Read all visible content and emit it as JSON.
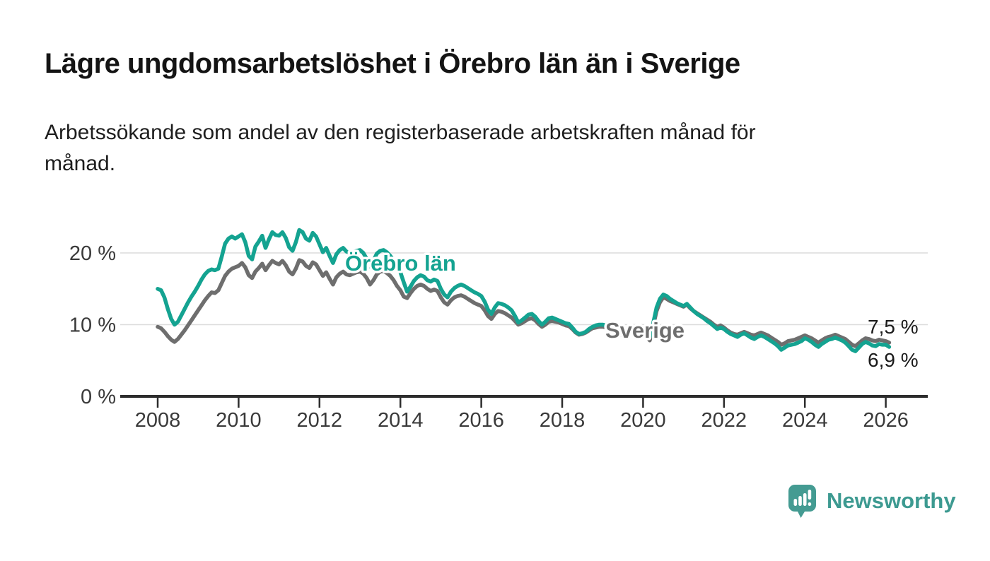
{
  "header": {
    "title": "Lägre ungdomsarbetslöshet i Örebro län än i Sverige",
    "subtitle_line1": "Arbetssökande som andel av den registerbaserade arbetskraften månad för",
    "subtitle_line2": "månad."
  },
  "chart_data": {
    "type": "line",
    "title": "Lägre ungdomsarbetslöshet i Örebro län än i Sverige",
    "subtitle": "Arbetssökande som andel av den registerbaserade arbetskraften månad för månad.",
    "frequency": "monthly",
    "start_year": 2008,
    "start_month": 1,
    "x_ticks": [
      2008,
      2010,
      2012,
      2014,
      2016,
      2018,
      2020,
      2022,
      2024,
      2026
    ],
    "y_ticks": [
      0,
      10,
      20
    ],
    "y_tick_labels": [
      "0 %",
      "10 %",
      "20 %"
    ],
    "ylim": [
      0,
      24.5
    ],
    "grid": "horizontal",
    "colors": {
      "orebro": "#14a391",
      "sverige": "#6e6e6e",
      "gridline": "#dcdcdc",
      "axis": "#2d2d2d"
    },
    "series": [
      {
        "name": "Örebro län",
        "color": "#14a391",
        "end_label": "6,9 %",
        "end_value": 6.9,
        "values": [
          15.0,
          14.8,
          13.8,
          12.2,
          10.8,
          10.0,
          10.4,
          11.3,
          12.2,
          13.1,
          13.9,
          14.6,
          15.4,
          16.3,
          17.0,
          17.5,
          17.7,
          17.6,
          17.8,
          19.5,
          21.3,
          22.0,
          22.3,
          22.0,
          22.3,
          22.6,
          21.5,
          19.6,
          19.1,
          20.9,
          21.6,
          22.4,
          20.7,
          21.9,
          22.9,
          22.5,
          22.4,
          22.9,
          22.1,
          20.8,
          20.3,
          21.5,
          23.2,
          22.9,
          22.0,
          21.7,
          22.8,
          22.3,
          21.2,
          20.1,
          20.7,
          19.6,
          18.6,
          19.8,
          20.4,
          20.7,
          20.2,
          20.0,
          20.1,
          20.3,
          20.4,
          20.0,
          19.2,
          18.1,
          18.9,
          19.9,
          20.3,
          20.4,
          20.1,
          19.6,
          18.9,
          18.0,
          17.3,
          15.9,
          14.6,
          15.3,
          16.1,
          16.6,
          16.9,
          16.7,
          16.2,
          16.0,
          16.3,
          16.1,
          15.0,
          14.2,
          13.8,
          14.6,
          15.1,
          15.4,
          15.6,
          15.4,
          15.1,
          14.8,
          14.5,
          14.3,
          14.0,
          13.2,
          12.1,
          11.5,
          12.4,
          13.0,
          12.9,
          12.7,
          12.4,
          12.0,
          11.2,
          10.3,
          10.6,
          11.0,
          11.4,
          11.5,
          11.1,
          10.5,
          10.0,
          10.4,
          10.9,
          11.0,
          10.8,
          10.6,
          10.4,
          10.2,
          10.1,
          9.6,
          9.0,
          8.7,
          8.8,
          9.0,
          9.4,
          9.7,
          9.9,
          10.0,
          10.0,
          9.9,
          9.7,
          9.3,
          9.0,
          9.1,
          9.3,
          9.4,
          9.5,
          9.6,
          9.5,
          9.3,
          9.0,
          8.6,
          8.3,
          10.2,
          12.4,
          13.6,
          14.2,
          14.0,
          13.6,
          13.3,
          13.0,
          12.8,
          12.6,
          12.9,
          12.4,
          11.9,
          11.5,
          11.2,
          10.9,
          10.5,
          10.2,
          9.8,
          9.4,
          9.6,
          9.4,
          9.0,
          8.7,
          8.5,
          8.3,
          8.6,
          8.8,
          8.5,
          8.2,
          8.0,
          8.3,
          8.5,
          8.3,
          8.0,
          7.7,
          7.4,
          7.0,
          6.5,
          6.8,
          7.1,
          7.2,
          7.3,
          7.5,
          7.7,
          8.1,
          7.9,
          7.6,
          7.2,
          6.9,
          7.3,
          7.6,
          7.9,
          8.0,
          8.2,
          8.0,
          7.8,
          7.5,
          7.0,
          6.5,
          6.3,
          6.8,
          7.3,
          7.6,
          7.4,
          7.1,
          7.0,
          7.3,
          7.2,
          7.2,
          6.9
        ]
      },
      {
        "name": "Sverige",
        "color": "#6e6e6e",
        "end_label": "7,5 %",
        "end_value": 7.5,
        "values": [
          9.7,
          9.5,
          9.0,
          8.4,
          7.9,
          7.6,
          8.0,
          8.6,
          9.2,
          9.9,
          10.6,
          11.3,
          12.0,
          12.7,
          13.4,
          14.0,
          14.5,
          14.4,
          14.8,
          15.8,
          16.8,
          17.4,
          17.8,
          18.0,
          18.2,
          18.6,
          18.0,
          16.9,
          16.5,
          17.4,
          17.9,
          18.5,
          17.6,
          18.3,
          18.9,
          18.6,
          18.4,
          18.9,
          18.3,
          17.4,
          17.0,
          17.8,
          19.0,
          18.8,
          18.2,
          17.9,
          18.7,
          18.4,
          17.6,
          16.8,
          17.3,
          16.4,
          15.6,
          16.6,
          17.1,
          17.4,
          17.0,
          16.9,
          17.1,
          17.3,
          17.4,
          17.1,
          16.5,
          15.6,
          16.2,
          17.0,
          17.4,
          17.5,
          17.2,
          16.8,
          16.2,
          15.4,
          14.8,
          13.9,
          13.7,
          14.4,
          15.0,
          15.4,
          15.6,
          15.4,
          15.0,
          14.7,
          14.9,
          14.7,
          13.8,
          13.1,
          12.8,
          13.4,
          13.8,
          14.0,
          14.1,
          13.9,
          13.6,
          13.3,
          13.0,
          12.8,
          12.6,
          12.0,
          11.2,
          10.8,
          11.5,
          11.9,
          11.8,
          11.6,
          11.3,
          11.0,
          10.5,
          10.0,
          10.2,
          10.5,
          10.8,
          10.9,
          10.6,
          10.1,
          9.7,
          10.0,
          10.4,
          10.5,
          10.4,
          10.3,
          10.1,
          9.9,
          9.8,
          9.4,
          8.9,
          8.6,
          8.7,
          8.9,
          9.2,
          9.5,
          9.6,
          9.7,
          9.7,
          9.6,
          9.4,
          8.9,
          8.3,
          8.5,
          8.8,
          9.0,
          9.2,
          9.3,
          9.2,
          9.0,
          8.8,
          8.4,
          7.8,
          9.8,
          11.9,
          13.1,
          13.8,
          13.6,
          13.3,
          13.1,
          12.9,
          12.7,
          12.5,
          12.8,
          12.3,
          11.9,
          11.6,
          11.3,
          11.0,
          10.7,
          10.4,
          10.0,
          9.7,
          9.9,
          9.6,
          9.2,
          8.9,
          8.7,
          8.6,
          8.8,
          9.0,
          8.8,
          8.6,
          8.5,
          8.7,
          8.9,
          8.7,
          8.5,
          8.2,
          7.9,
          7.6,
          7.2,
          7.4,
          7.7,
          7.8,
          7.9,
          8.1,
          8.3,
          8.5,
          8.3,
          8.1,
          7.8,
          7.5,
          7.8,
          8.1,
          8.3,
          8.4,
          8.6,
          8.4,
          8.2,
          8.0,
          7.6,
          7.2,
          7.0,
          7.4,
          7.8,
          8.1,
          8.0,
          7.8,
          7.7,
          7.9,
          7.8,
          7.7,
          7.5
        ]
      }
    ],
    "annotations": [
      {
        "text": "Örebro län",
        "series": "Örebro län"
      },
      {
        "text": "Sverige",
        "series": "Sverige"
      }
    ]
  },
  "footer": {
    "brand": "Newsworthy"
  }
}
